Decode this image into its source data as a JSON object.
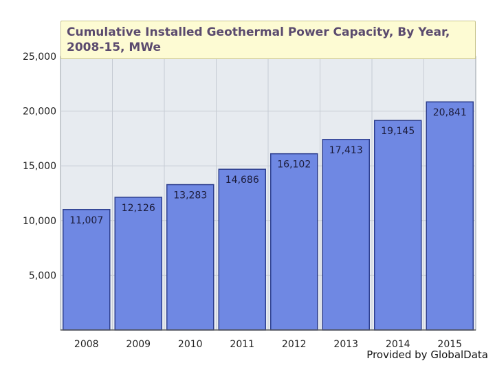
{
  "chart_data": {
    "type": "bar",
    "title": "Cumulative Installed Geothermal Power Capacity, By Year, 2008-15, MWe",
    "categories": [
      "2008",
      "2009",
      "2010",
      "2011",
      "2012",
      "2013",
      "2014",
      "2015"
    ],
    "values": [
      11007,
      12126,
      13283,
      14686,
      16102,
      17413,
      19145,
      20841
    ],
    "data_labels": [
      "11,007",
      "12,126",
      "13,283",
      "14,686",
      "16,102",
      "17,413",
      "19,145",
      "20,841"
    ],
    "yticks": [
      5000,
      10000,
      15000,
      20000,
      25000
    ],
    "ytick_labels": [
      "5,000",
      "10,000",
      "15,000",
      "20,000",
      "25,000"
    ],
    "ylim": [
      0,
      25000
    ],
    "grid": true,
    "legend": "none",
    "colors": {
      "bar": "#6f88e3",
      "bar_border": "#2e3f8f",
      "plot_bg": "#e7ebf0",
      "grid": "#c6cbd3"
    }
  },
  "footer": {
    "credit": "Provided by GlobalData"
  }
}
